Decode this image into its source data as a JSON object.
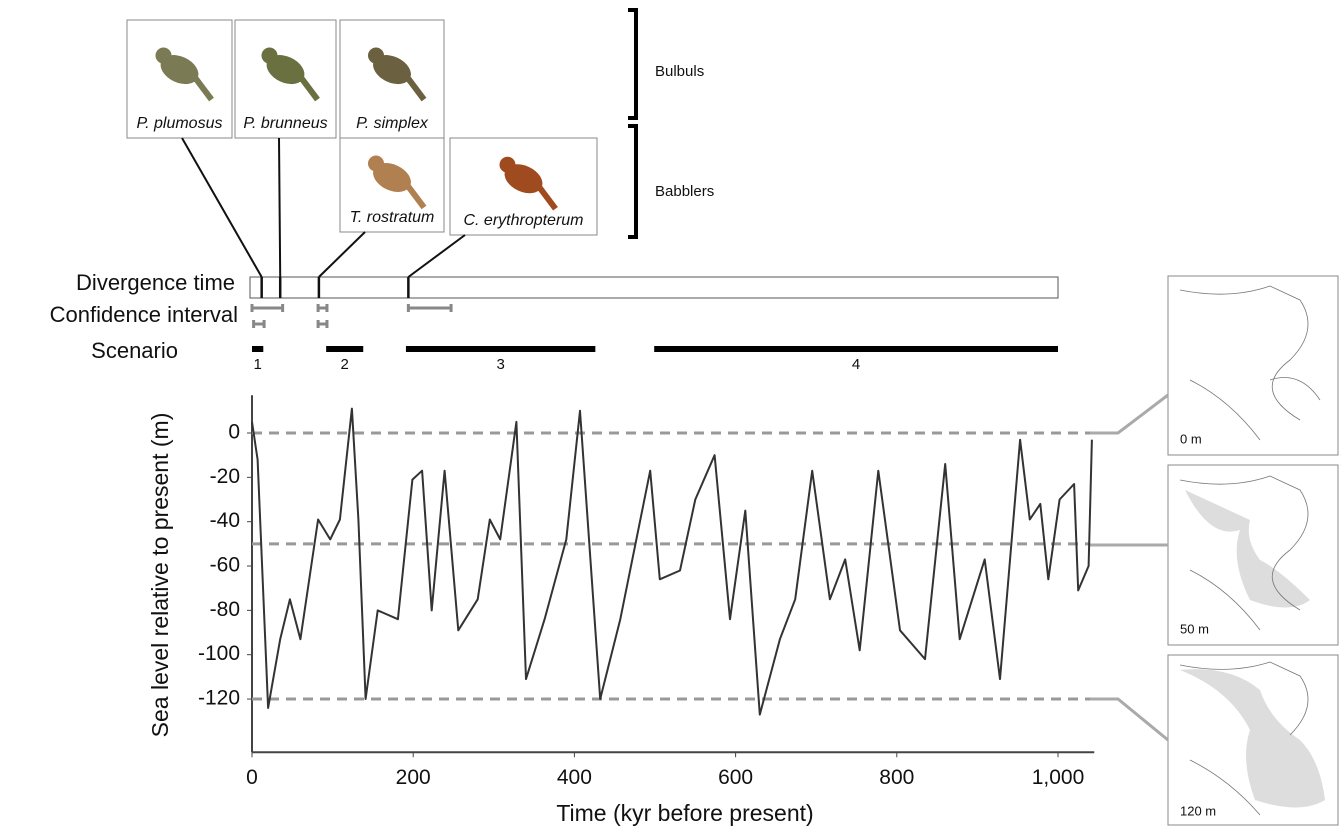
{
  "chart_data": {
    "type": "line",
    "x_label": "Time (kyr before present)",
    "y_label": "Sea level relative to present (m)",
    "xlim": [
      0,
      1045
    ],
    "ylim": [
      -144,
      17
    ],
    "xticks": [
      0,
      200,
      400,
      600,
      800,
      {
        "value": 1000,
        "label": "1,000"
      }
    ],
    "yticks": [
      0,
      -20,
      -40,
      -60,
      -80,
      -100,
      -120
    ],
    "reference_lines": [
      0,
      -50,
      -120
    ],
    "series": [
      {
        "color": "#333333",
        "x": [
          0,
          7,
          20,
          35,
          47,
          60,
          82,
          97,
          109,
          124,
          132,
          141,
          156,
          181,
          199,
          211,
          223,
          239,
          256,
          280,
          295,
          308,
          328,
          340,
          363,
          390,
          407,
          432,
          457,
          494,
          506,
          531,
          550,
          574,
          593,
          612,
          630,
          655,
          674,
          695,
          717,
          736,
          754,
          777,
          804,
          835,
          860,
          878,
          909,
          928,
          953,
          965,
          978,
          988,
          1002,
          1020,
          1025,
          1038,
          1042
        ],
        "values": [
          5,
          -12,
          -124,
          -93,
          -75,
          -93,
          -39,
          -48,
          -39,
          11,
          -39,
          -120,
          -80,
          -84,
          -21,
          -17,
          -80,
          -17,
          -89,
          -75,
          -39,
          -48,
          5,
          -111,
          -84,
          -48,
          10,
          -120,
          -84,
          -17,
          -66,
          -62,
          -30,
          -10,
          -84,
          -35,
          -127,
          -93,
          -75,
          -17,
          -75,
          -57,
          -98,
          -17,
          -89,
          -102,
          -14,
          -93,
          -57,
          -111,
          -3,
          -39,
          -32,
          -66,
          -30,
          -23,
          -71,
          -60,
          -3
        ]
      }
    ],
    "row_labels": [
      "Divergence time",
      "Confidence interval",
      "Scenario"
    ],
    "groups": [
      "Bulbuls",
      "Babblers"
    ],
    "species": [
      {
        "name": "P. plumosus",
        "divergence": 12
      },
      {
        "name": "P. brunneus",
        "divergence": 35
      },
      {
        "name": "P. simplex",
        "divergence": null
      },
      {
        "name": "T. rostratum",
        "divergence": 83
      },
      {
        "name": "C. erythropterum",
        "divergence": 194
      }
    ],
    "confidence_intervals": [
      [
        [
          0,
          38
        ],
        [
          82,
          93
        ],
        [
          194,
          247
        ]
      ],
      [
        [
          2,
          15
        ],
        [
          82,
          93
        ]
      ]
    ],
    "scenarios": [
      {
        "label": "1",
        "range": [
          0,
          14
        ]
      },
      {
        "label": "2",
        "range": [
          92,
          138
        ]
      },
      {
        "label": "3",
        "range": [
          191,
          426
        ]
      },
      {
        "label": "4",
        "range": [
          499,
          1000
        ]
      }
    ],
    "maps": [
      "0 m",
      "50 m",
      "120 m"
    ]
  }
}
